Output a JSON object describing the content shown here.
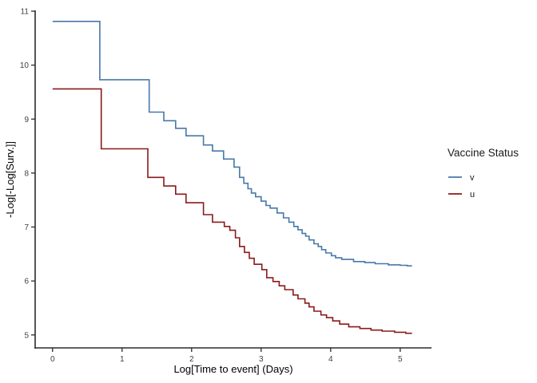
{
  "chart_data": {
    "type": "line",
    "subtype": "step",
    "title": "",
    "xlabel": "Log[Time to event] (Days)",
    "ylabel": "-Log[-Log[Surv.]]",
    "xlim": [
      -0.25,
      5.45
    ],
    "ylim": [
      4.76,
      11.0
    ],
    "x_ticks": [
      0,
      1,
      2,
      3,
      4,
      5
    ],
    "y_ticks": [
      5,
      6,
      7,
      8,
      9,
      10,
      11
    ],
    "grid": false,
    "background": "#ffffff",
    "axis_color": "#2b2b2b",
    "tick_label_color": "#404040",
    "legend": {
      "title": "Vaccine Status",
      "position": "right"
    },
    "x_end": 5.17,
    "series": [
      {
        "name": "v",
        "color": "#4878A8",
        "points": [
          [
            0.0,
            10.81
          ],
          [
            0.68,
            9.73
          ],
          [
            1.39,
            9.13
          ],
          [
            1.6,
            8.97
          ],
          [
            1.77,
            8.83
          ],
          [
            1.92,
            8.69
          ],
          [
            2.17,
            8.52
          ],
          [
            2.3,
            8.41
          ],
          [
            2.46,
            8.26
          ],
          [
            2.61,
            8.11
          ],
          [
            2.69,
            7.92
          ],
          [
            2.75,
            7.81
          ],
          [
            2.81,
            7.71
          ],
          [
            2.86,
            7.63
          ],
          [
            2.92,
            7.56
          ],
          [
            3.0,
            7.48
          ],
          [
            3.07,
            7.4
          ],
          [
            3.13,
            7.35
          ],
          [
            3.23,
            7.26
          ],
          [
            3.32,
            7.17
          ],
          [
            3.4,
            7.09
          ],
          [
            3.47,
            7.01
          ],
          [
            3.53,
            6.95
          ],
          [
            3.59,
            6.88
          ],
          [
            3.64,
            6.83
          ],
          [
            3.69,
            6.76
          ],
          [
            3.76,
            6.69
          ],
          [
            3.82,
            6.64
          ],
          [
            3.87,
            6.58
          ],
          [
            3.93,
            6.52
          ],
          [
            4.01,
            6.47
          ],
          [
            4.07,
            6.43
          ],
          [
            4.16,
            6.4
          ],
          [
            4.33,
            6.36
          ],
          [
            4.49,
            6.34
          ],
          [
            4.64,
            6.32
          ],
          [
            4.83,
            6.3
          ],
          [
            5.0,
            6.29
          ],
          [
            5.1,
            6.28
          ]
        ]
      },
      {
        "name": "u",
        "color": "#8B1A1A",
        "points": [
          [
            0.0,
            9.56
          ],
          [
            0.7,
            8.45
          ],
          [
            1.37,
            7.92
          ],
          [
            1.6,
            7.76
          ],
          [
            1.77,
            7.61
          ],
          [
            1.92,
            7.45
          ],
          [
            2.17,
            7.23
          ],
          [
            2.3,
            7.09
          ],
          [
            2.47,
            7.01
          ],
          [
            2.55,
            6.94
          ],
          [
            2.63,
            6.8
          ],
          [
            2.69,
            6.64
          ],
          [
            2.76,
            6.53
          ],
          [
            2.83,
            6.42
          ],
          [
            2.9,
            6.31
          ],
          [
            3.01,
            6.21
          ],
          [
            3.08,
            6.06
          ],
          [
            3.17,
            5.99
          ],
          [
            3.26,
            5.91
          ],
          [
            3.34,
            5.84
          ],
          [
            3.46,
            5.74
          ],
          [
            3.53,
            5.67
          ],
          [
            3.63,
            5.59
          ],
          [
            3.69,
            5.52
          ],
          [
            3.76,
            5.44
          ],
          [
            3.86,
            5.37
          ],
          [
            3.94,
            5.32
          ],
          [
            4.03,
            5.26
          ],
          [
            4.13,
            5.2
          ],
          [
            4.26,
            5.15
          ],
          [
            4.42,
            5.12
          ],
          [
            4.58,
            5.09
          ],
          [
            4.74,
            5.07
          ],
          [
            4.92,
            5.05
          ],
          [
            5.08,
            5.03
          ]
        ]
      }
    ]
  }
}
